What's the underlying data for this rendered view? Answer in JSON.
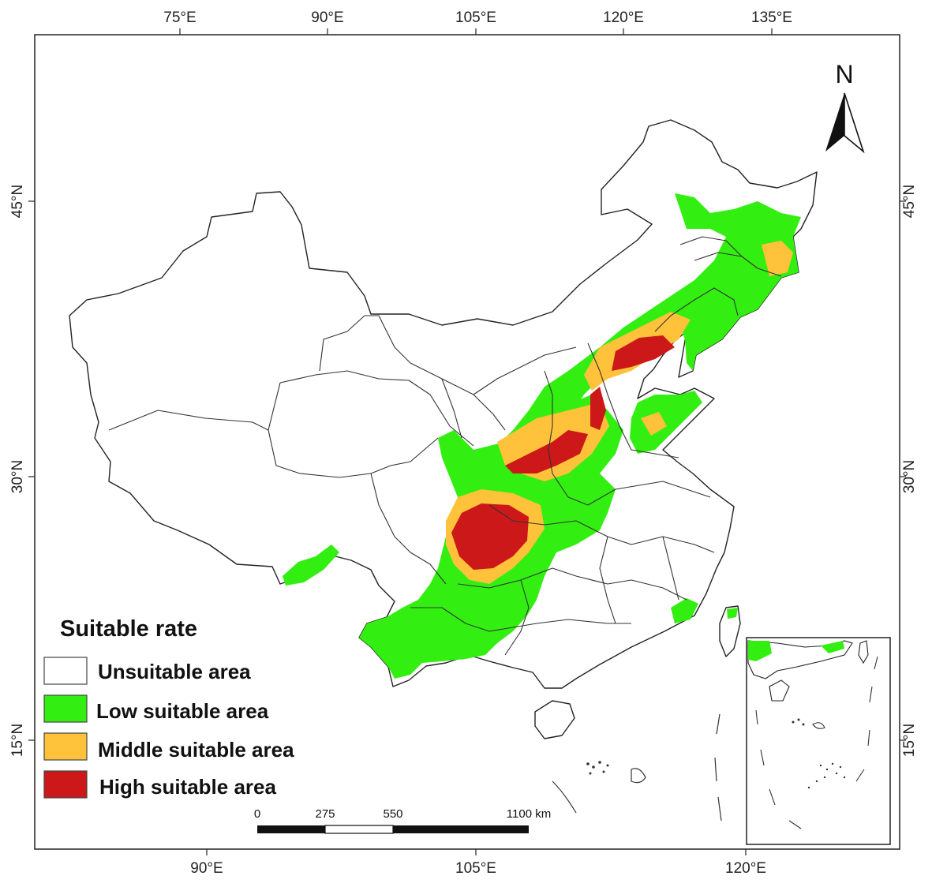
{
  "top_ticks": [
    "75°E",
    "90°E",
    "105°E",
    "120°E",
    "135°E"
  ],
  "bottom_ticks": [
    "90°E",
    "105°E",
    "120°E"
  ],
  "left_ticks": [
    "45°N",
    "30°N",
    "15°N"
  ],
  "right_ticks": [
    "45°N",
    "30°N",
    "15°N"
  ],
  "legend": {
    "title": "Suitable rate",
    "items": [
      {
        "label": "Unsuitable  area",
        "color": "#ffffff"
      },
      {
        "label": "Low suitable area",
        "color": "#33ee11"
      },
      {
        "label": "Middle suitable area",
        "color": "#ffc23a"
      },
      {
        "label": "High suitable area",
        "color": "#cc1818"
      }
    ]
  },
  "scale_bar": {
    "ticks": [
      "0",
      "275",
      "550",
      "1100 km"
    ]
  },
  "north_arrow": {
    "label": "N"
  },
  "colors": {
    "low": "#33ee11",
    "middle": "#ffc23a",
    "high": "#cc1818",
    "border": "#333333"
  }
}
